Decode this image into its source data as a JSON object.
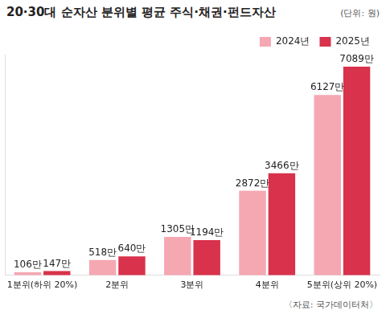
{
  "chart_data": {
    "type": "bar",
    "title": "20·30대 순자산 분위별 평균 주식·채권·펀드자산",
    "subtitle": "(단위: 원)",
    "annotations": [
      "〈자료: 국가데이터처〉"
    ],
    "categories": [
      "1분위(하위 20%)",
      "2분위",
      "3분위",
      "4분위",
      "5분위(상위 20%)"
    ],
    "series": [
      {
        "name": "2024년",
        "color": "#f5a8b2",
        "values": [
          1060000,
          5180000,
          13050000,
          28720000,
          61270000
        ],
        "value_labels": [
          "106만",
          "518만",
          "1305만",
          "2872만",
          "6127만"
        ]
      },
      {
        "name": "2025년",
        "color": "#d8324c",
        "values": [
          1470000,
          6400000,
          11940000,
          34660000,
          70890000
        ],
        "value_labels": [
          "147만",
          "640만",
          "1194만",
          "3466만",
          "7089만"
        ]
      }
    ],
    "ylim": [
      0,
      75000000
    ],
    "grid": false,
    "legend": "top-right",
    "data_labels": true,
    "tick_labels": "x"
  }
}
